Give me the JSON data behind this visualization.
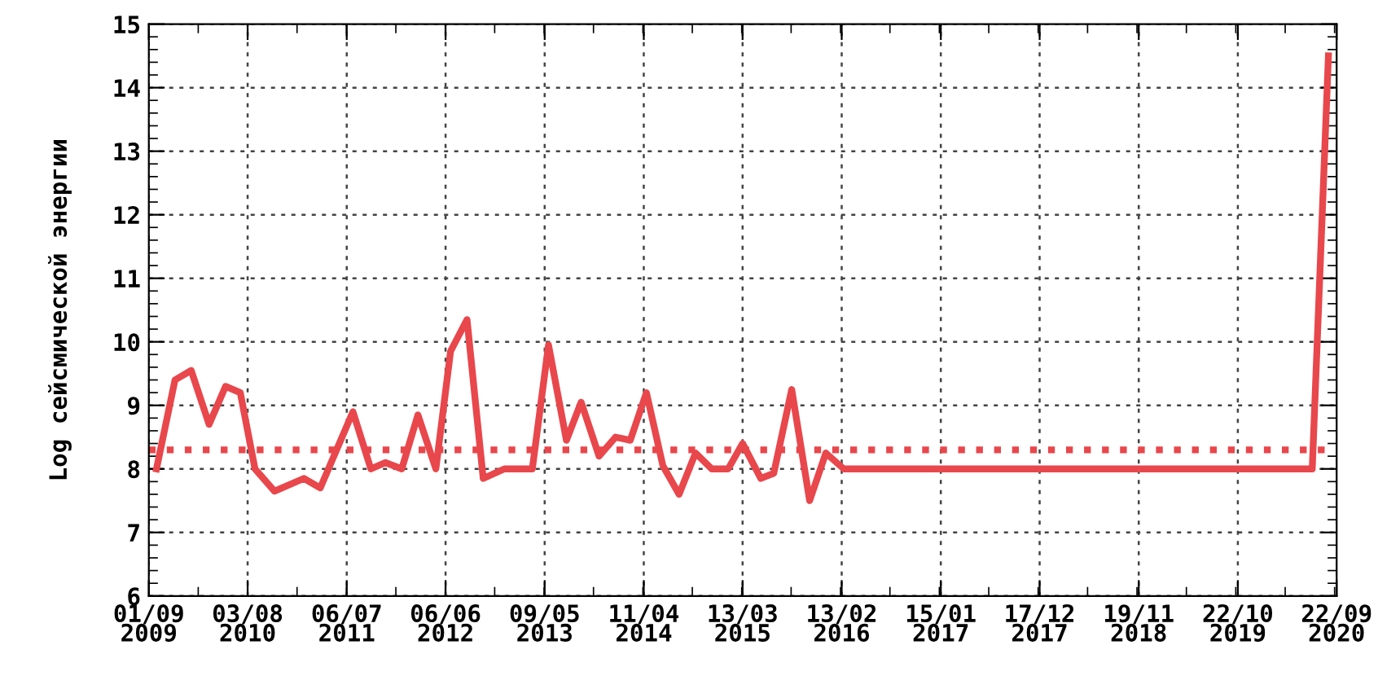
{
  "chart_data": {
    "type": "line",
    "ylabel": "Log сейсмической энергии",
    "x": [
      "2009-09-27",
      "2009-11-29",
      "2010-01-23",
      "2010-03-25",
      "2010-05-20",
      "2010-07-09",
      "2010-08-28",
      "2010-11-02",
      "2011-02-10",
      "2011-04-07",
      "2011-07-27",
      "2011-09-26",
      "2011-11-14",
      "2012-01-09",
      "2012-03-04",
      "2012-05-04",
      "2012-06-23",
      "2012-08-18",
      "2012-10-12",
      "2012-12-23",
      "2013-03-28",
      "2013-05-22",
      "2013-07-22",
      "2013-09-10",
      "2013-11-10",
      "2014-01-05",
      "2014-02-24",
      "2014-04-20",
      "2014-06-15",
      "2014-08-09",
      "2014-10-04",
      "2014-11-28",
      "2015-01-23",
      "2015-03-13",
      "2015-05-14",
      "2015-06-27",
      "2015-08-27",
      "2015-10-27",
      "2015-12-21",
      "2016-02-20",
      "2020-07-01",
      "2020-08-25"
    ],
    "series": [
      {
        "color": "#e8474c",
        "values": [
          8.0,
          9.4,
          9.55,
          8.7,
          9.3,
          9.2,
          8.0,
          7.65,
          7.85,
          7.7,
          8.9,
          8.0,
          8.1,
          8.0,
          8.85,
          8.0,
          9.85,
          10.35,
          7.85,
          8.0,
          8.0,
          9.95,
          8.45,
          9.05,
          8.2,
          8.5,
          8.45,
          9.2,
          8.05,
          7.6,
          8.25,
          8.0,
          8.0,
          8.4,
          7.85,
          7.93,
          9.25,
          7.5,
          8.25,
          8.0,
          8.0,
          14.5
        ]
      }
    ],
    "xlim": [
      "2009-09-01",
      "2020-09-22"
    ],
    "xticks": [
      {
        "value": "2009-09-01",
        "label": "01/09\n2009"
      },
      {
        "value": "2010-08-03",
        "label": "03/08\n2010"
      },
      {
        "value": "2011-07-06",
        "label": "06/07\n2011"
      },
      {
        "value": "2012-06-06",
        "label": "06/06\n2012"
      },
      {
        "value": "2013-05-09",
        "label": "09/05\n2013"
      },
      {
        "value": "2014-04-11",
        "label": "11/04\n2014"
      },
      {
        "value": "2015-03-13",
        "label": "13/03\n2015"
      },
      {
        "value": "2016-02-13",
        "label": "13/02\n2016"
      },
      {
        "value": "2017-01-15",
        "label": "15/01\n2017"
      },
      {
        "value": "2017-12-17",
        "label": "17/12\n2017"
      },
      {
        "value": "2018-11-19",
        "label": "19/11\n2018"
      },
      {
        "value": "2019-10-22",
        "label": "22/10\n2019"
      },
      {
        "value": "2020-09-22",
        "label": "22/09\n2020"
      }
    ],
    "ylim": [
      6,
      15
    ],
    "yticks": [
      6,
      7,
      8,
      9,
      10,
      11,
      12,
      13,
      14,
      15
    ],
    "ref_lines": [
      {
        "axis": "y",
        "value": 8.3,
        "color": "#e8474c",
        "line_style": "dotted"
      }
    ],
    "grid": true,
    "line_style": "solid",
    "marker": "none",
    "legend": false
  }
}
